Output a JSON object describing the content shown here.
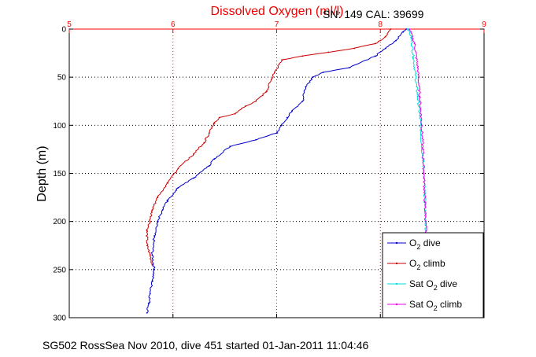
{
  "chart_data": {
    "type": "line",
    "title": "Dissolved Oxygen (ml/l)",
    "subtitle": "SN: 149  CAL: 39699",
    "xlabel": "",
    "ylabel": "Depth (m)",
    "footer": "SG502 RossSea Nov 2010, dive 451 started 01-Jan-2011 11:04:46",
    "xlim": [
      5,
      9
    ],
    "ylim": [
      0,
      300
    ],
    "y_reversed": true,
    "x_axis_position": "top",
    "grid": true,
    "xticks": [
      "5",
      "6",
      "7",
      "8",
      "9"
    ],
    "yticks": [
      "0",
      "50",
      "100",
      "150",
      "200",
      "250",
      "300"
    ],
    "legend_position": "bottom-right",
    "legend": [
      {
        "label": "O2 dive",
        "base": "O",
        "sub": "2",
        "suffix": " dive",
        "color": "#0000cc",
        "marker": "point"
      },
      {
        "label": "O2 climb",
        "base": "O",
        "sub": "2",
        "suffix": " climb",
        "color": "#cc0000",
        "marker": "point"
      },
      {
        "label": "Sat O2 dive",
        "base": "Sat O",
        "sub": "2",
        "suffix": " dive",
        "color": "#00dddd",
        "marker": "point"
      },
      {
        "label": "Sat O2 climb",
        "base": "Sat O",
        "sub": "2",
        "suffix": " climb",
        "color": "#ee00ee",
        "marker": "point"
      }
    ],
    "series": [
      {
        "name": "O2 dive",
        "color": "#0000cc",
        "points": [
          [
            8.25,
            0
          ],
          [
            8.22,
            3
          ],
          [
            8.15,
            12
          ],
          [
            8.05,
            20
          ],
          [
            7.95,
            28
          ],
          [
            7.7,
            40
          ],
          [
            7.45,
            45
          ],
          [
            7.35,
            50
          ],
          [
            7.28,
            60
          ],
          [
            7.25,
            75
          ],
          [
            7.15,
            85
          ],
          [
            7.1,
            92
          ],
          [
            7.05,
            100
          ],
          [
            7.0,
            108
          ],
          [
            6.8,
            115
          ],
          [
            6.55,
            122
          ],
          [
            6.4,
            135
          ],
          [
            6.35,
            142
          ],
          [
            6.2,
            155
          ],
          [
            6.05,
            165
          ],
          [
            5.95,
            178
          ],
          [
            5.9,
            188
          ],
          [
            5.85,
            200
          ],
          [
            5.82,
            215
          ],
          [
            5.8,
            235
          ],
          [
            5.82,
            250
          ],
          [
            5.8,
            262
          ],
          [
            5.78,
            275
          ],
          [
            5.77,
            285
          ],
          [
            5.75,
            295
          ]
        ]
      },
      {
        "name": "O2 climb",
        "color": "#cc0000",
        "points": [
          [
            8.1,
            0
          ],
          [
            8.05,
            8
          ],
          [
            7.95,
            15
          ],
          [
            7.75,
            20
          ],
          [
            7.5,
            24
          ],
          [
            7.25,
            28
          ],
          [
            7.05,
            32
          ],
          [
            6.98,
            45
          ],
          [
            6.95,
            52
          ],
          [
            6.9,
            65
          ],
          [
            6.8,
            75
          ],
          [
            6.7,
            80
          ],
          [
            6.6,
            88
          ],
          [
            6.45,
            92
          ],
          [
            6.4,
            98
          ],
          [
            6.35,
            108
          ],
          [
            6.3,
            118
          ],
          [
            6.2,
            130
          ],
          [
            6.05,
            145
          ],
          [
            5.95,
            160
          ],
          [
            5.85,
            175
          ],
          [
            5.8,
            188
          ],
          [
            5.78,
            200
          ],
          [
            5.75,
            210
          ],
          [
            5.75,
            225
          ],
          [
            5.78,
            235
          ],
          [
            5.8,
            245
          ]
        ]
      },
      {
        "name": "Sat O2 dive",
        "color": "#00dddd",
        "points": [
          [
            8.27,
            0
          ],
          [
            8.3,
            10
          ],
          [
            8.32,
            30
          ],
          [
            8.35,
            60
          ],
          [
            8.38,
            90
          ],
          [
            8.4,
            120
          ],
          [
            8.42,
            150
          ],
          [
            8.43,
            180
          ],
          [
            8.44,
            210
          ],
          [
            8.44,
            240
          ],
          [
            8.45,
            265
          ]
        ]
      },
      {
        "name": "Sat O2 climb",
        "color": "#ee00ee",
        "points": [
          [
            8.28,
            0
          ],
          [
            8.33,
            15
          ],
          [
            8.36,
            40
          ],
          [
            8.38,
            70
          ],
          [
            8.4,
            100
          ],
          [
            8.41,
            125
          ],
          [
            8.42,
            150
          ],
          [
            8.43,
            180
          ],
          [
            8.44,
            210
          ],
          [
            8.44,
            240
          ],
          [
            8.45,
            265
          ],
          [
            8.45,
            280
          ]
        ]
      }
    ]
  }
}
